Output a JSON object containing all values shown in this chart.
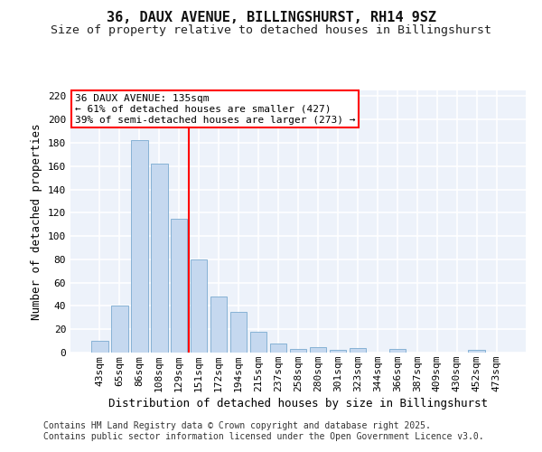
{
  "title1": "36, DAUX AVENUE, BILLINGSHURST, RH14 9SZ",
  "title2": "Size of property relative to detached houses in Billingshurst",
  "xlabel": "Distribution of detached houses by size in Billingshurst",
  "ylabel": "Number of detached properties",
  "categories": [
    "43sqm",
    "65sqm",
    "86sqm",
    "108sqm",
    "129sqm",
    "151sqm",
    "172sqm",
    "194sqm",
    "215sqm",
    "237sqm",
    "258sqm",
    "280sqm",
    "301sqm",
    "323sqm",
    "344sqm",
    "366sqm",
    "387sqm",
    "409sqm",
    "430sqm",
    "452sqm",
    "473sqm"
  ],
  "values": [
    10,
    40,
    182,
    162,
    115,
    80,
    48,
    35,
    18,
    8,
    3,
    5,
    2,
    4,
    0,
    3,
    0,
    0,
    0,
    2,
    0
  ],
  "bar_color": "#c5d8ef",
  "bar_edge_color": "#7aaad0",
  "vline_x_idx": 4.5,
  "vline_color": "red",
  "annotation_text": "36 DAUX AVENUE: 135sqm\n← 61% of detached houses are smaller (427)\n39% of semi-detached houses are larger (273) →",
  "annotation_box_color": "white",
  "annotation_box_edge_color": "red",
  "ylim": [
    0,
    225
  ],
  "yticks": [
    0,
    20,
    40,
    60,
    80,
    100,
    120,
    140,
    160,
    180,
    200,
    220
  ],
  "footer_text": "Contains HM Land Registry data © Crown copyright and database right 2025.\nContains public sector information licensed under the Open Government Licence v3.0.",
  "bg_color": "#edf2fa",
  "grid_color": "white",
  "title1_fontsize": 11,
  "title2_fontsize": 9.5,
  "xlabel_fontsize": 9,
  "ylabel_fontsize": 9,
  "tick_fontsize": 8,
  "annot_fontsize": 8,
  "footer_fontsize": 7
}
